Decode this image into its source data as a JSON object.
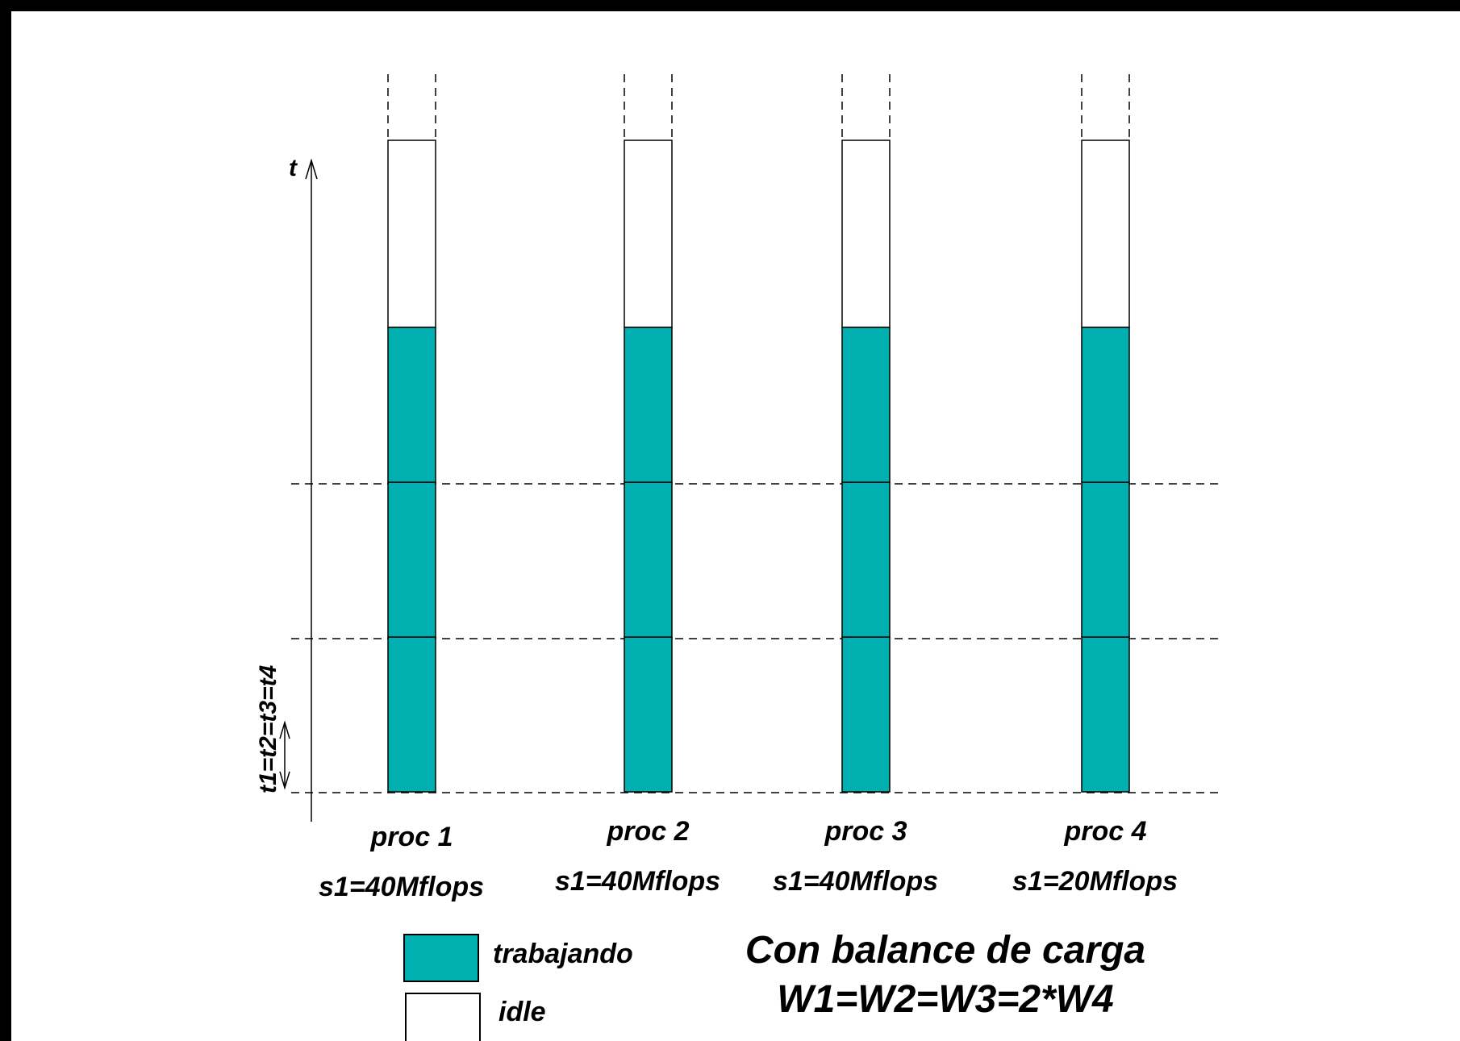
{
  "axis": {
    "time_label": "t",
    "interval_label": "t1=t2=t3=t4"
  },
  "colors": {
    "working": "#00AFAF",
    "idle": "#FFFFFF",
    "stroke": "#000000"
  },
  "processors": [
    {
      "name": "proc 1",
      "speed": "s1=40Mflops",
      "intervals_working": 3
    },
    {
      "name": "proc 2",
      "speed": "s1=40Mflops",
      "intervals_working": 3
    },
    {
      "name": "proc 3",
      "speed": "s1=40Mflops",
      "intervals_working": 3
    },
    {
      "name": "proc 4",
      "speed": "s1=20Mflops",
      "intervals_working": 3
    }
  ],
  "legend": {
    "working_label": "trabajando",
    "idle_label": "idle"
  },
  "title": {
    "line1": "Con balance de carga",
    "line2": "W1=W2=W3=2*W4"
  }
}
